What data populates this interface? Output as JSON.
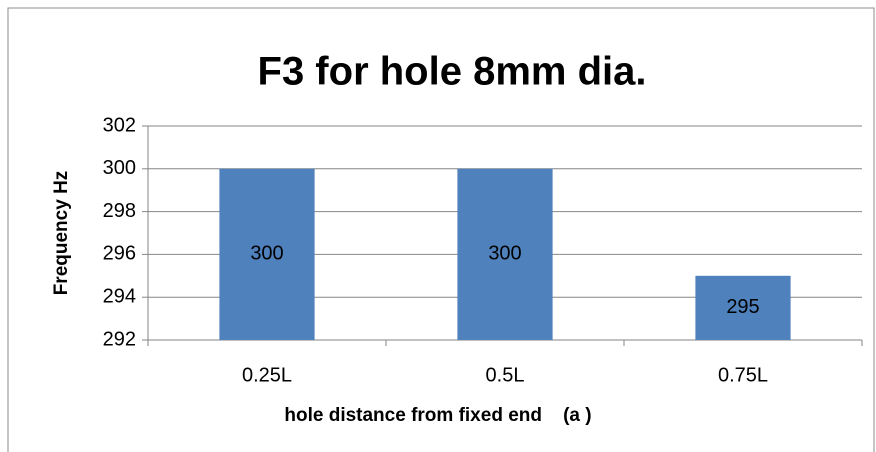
{
  "chart_data": {
    "type": "bar",
    "title": "F3 for hole 8mm dia.",
    "x_label": "hole distance from fixed end    (a )",
    "y_label": "Frequency Hz",
    "categories": [
      "0.25L",
      "0.5L",
      "0.75L"
    ],
    "values": [
      300,
      300,
      295
    ],
    "color": "#4f81bd",
    "ylim": [
      292,
      302
    ],
    "yticks": [
      292,
      294,
      296,
      298,
      300,
      302
    ],
    "grid": true
  }
}
